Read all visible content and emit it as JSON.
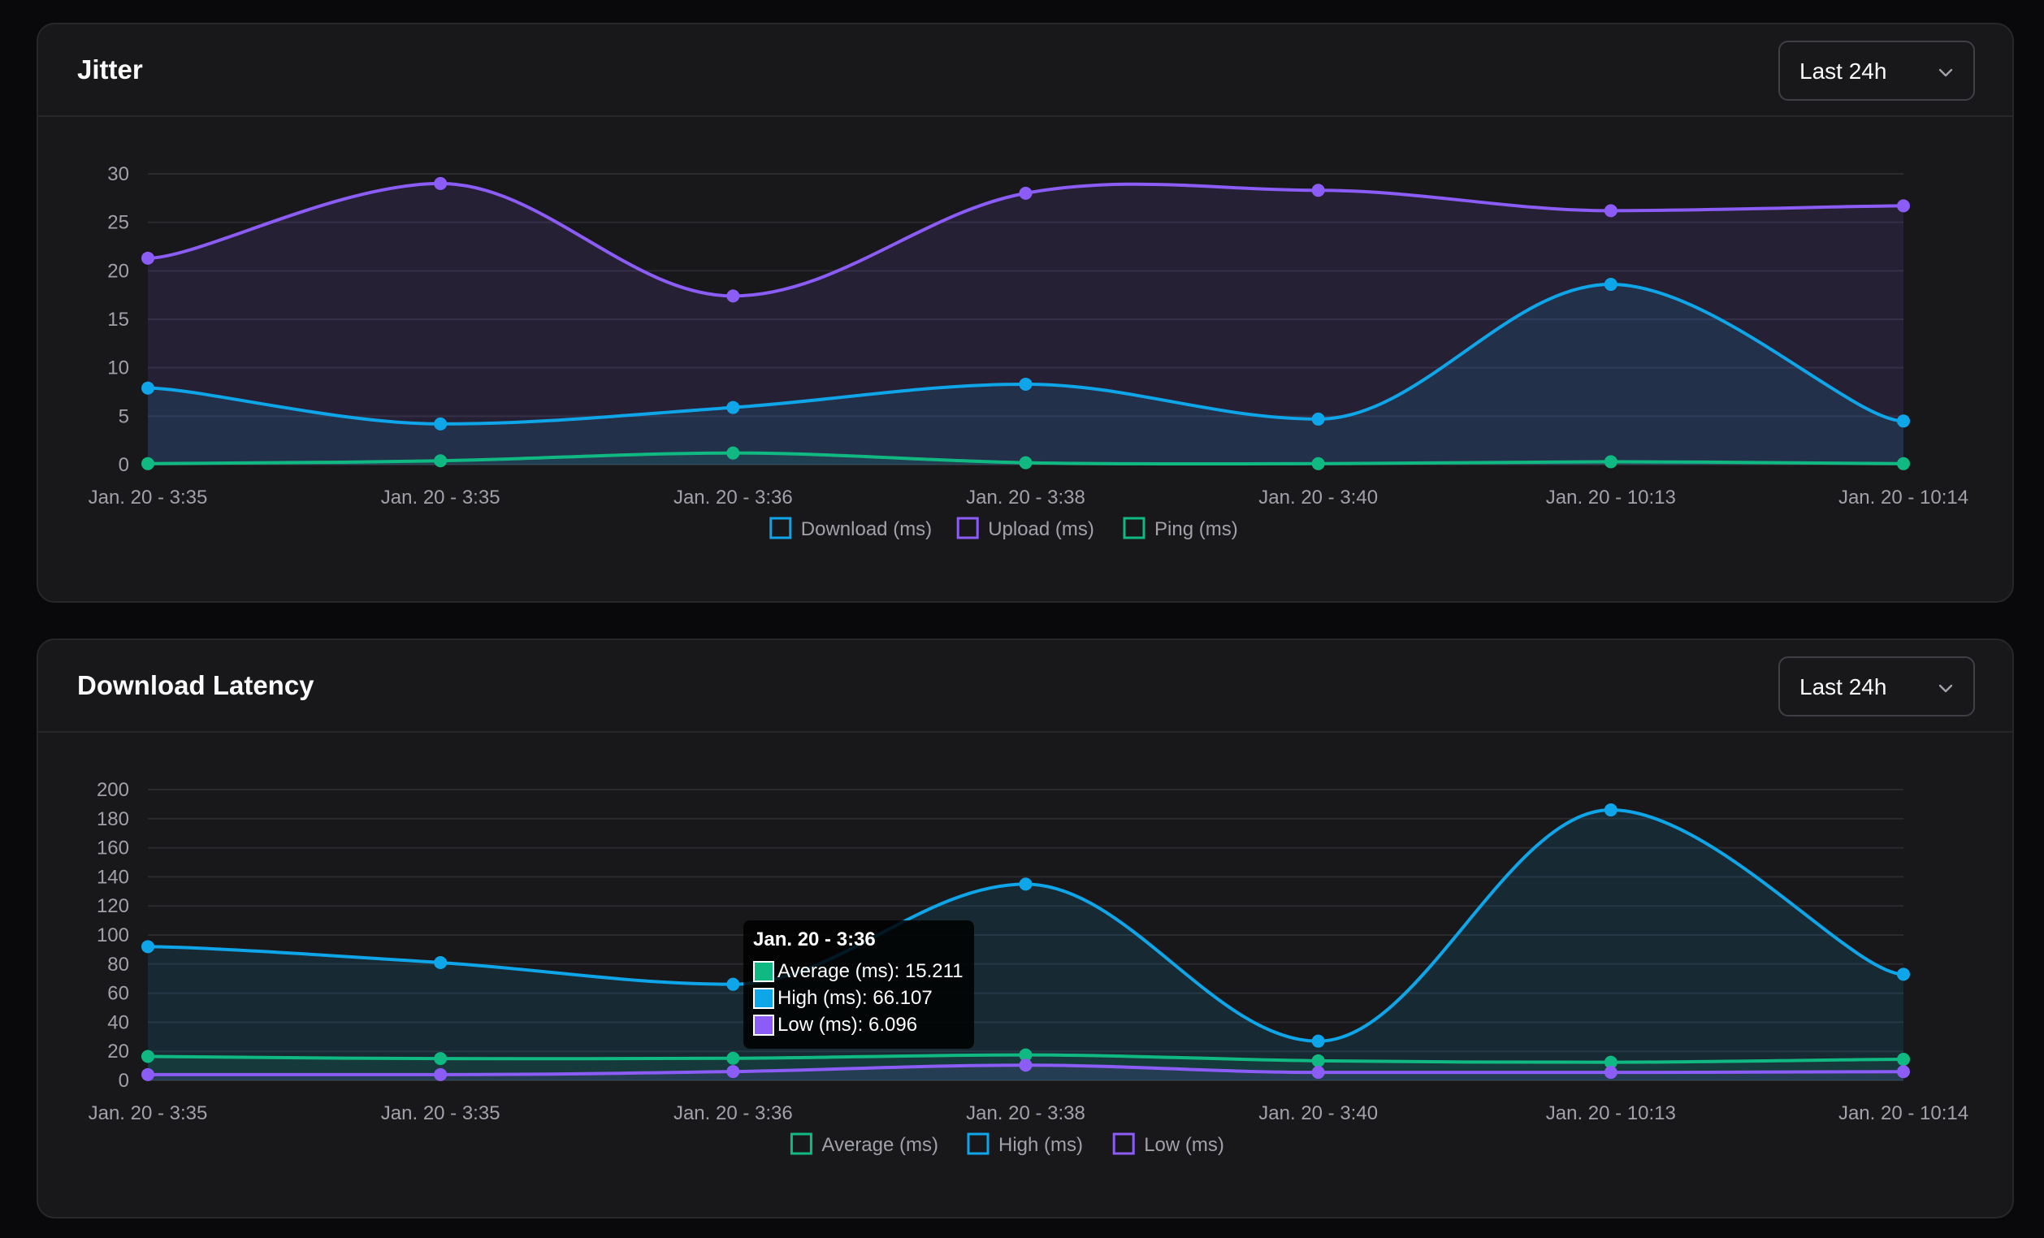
{
  "cards": [
    {
      "title": "Jitter",
      "range": "Last 24h",
      "legend": [
        {
          "label": "Download (ms)"
        },
        {
          "label": "Upload (ms)"
        },
        {
          "label": "Ping (ms)"
        }
      ]
    },
    {
      "title": "Download Latency",
      "range": "Last 24h",
      "legend": [
        {
          "label": "Average (ms)"
        },
        {
          "label": "High (ms)"
        },
        {
          "label": "Low (ms)"
        }
      ],
      "tooltip": {
        "title": "Jan. 20 - 3:36",
        "rows": [
          {
            "label": "Average (ms): 15.211",
            "color": "#10b981"
          },
          {
            "label": "High (ms): 66.107",
            "color": "#0ea5e9"
          },
          {
            "label": "Low (ms): 6.096",
            "color": "#8b5cf6"
          }
        ]
      }
    }
  ],
  "icons": {
    "dropdown": "chevron-down-icon"
  },
  "chart_data": [
    {
      "type": "area",
      "title": "Jitter",
      "categories": [
        "Jan. 20 - 3:35",
        "Jan. 20 - 3:35",
        "Jan. 20 - 3:36",
        "Jan. 20 - 3:38",
        "Jan. 20 - 3:40",
        "Jan. 20 - 10:13",
        "Jan. 20 - 10:14"
      ],
      "ylim": [
        0,
        30
      ],
      "yticks": [
        0,
        5,
        10,
        15,
        20,
        25,
        30
      ],
      "grid": true,
      "legend_position": "bottom",
      "series": [
        {
          "name": "Download (ms)",
          "color": "#0ea5e9",
          "values": [
            7.9,
            4.2,
            5.9,
            8.3,
            4.7,
            18.6,
            4.5
          ]
        },
        {
          "name": "Upload (ms)",
          "color": "#8b5cf6",
          "values": [
            21.3,
            29.0,
            17.4,
            28.0,
            28.3,
            26.2,
            26.7
          ]
        },
        {
          "name": "Ping (ms)",
          "color": "#10b981",
          "values": [
            0.1,
            0.4,
            1.2,
            0.2,
            0.1,
            0.3,
            0.1
          ]
        }
      ]
    },
    {
      "type": "area",
      "title": "Download Latency",
      "categories": [
        "Jan. 20 - 3:35",
        "Jan. 20 - 3:35",
        "Jan. 20 - 3:36",
        "Jan. 20 - 3:38",
        "Jan. 20 - 3:40",
        "Jan. 20 - 10:13",
        "Jan. 20 - 10:14"
      ],
      "ylim": [
        0,
        200
      ],
      "yticks": [
        0,
        20,
        40,
        60,
        80,
        100,
        120,
        140,
        160,
        180,
        200
      ],
      "grid": true,
      "legend_position": "bottom",
      "series": [
        {
          "name": "Average (ms)",
          "color": "#10b981",
          "values": [
            16.5,
            15.0,
            15.211,
            17.5,
            13.5,
            12.5,
            14.5
          ]
        },
        {
          "name": "High (ms)",
          "color": "#0ea5e9",
          "values": [
            92,
            81,
            66.107,
            135,
            27,
            186,
            73
          ]
        },
        {
          "name": "Low (ms)",
          "color": "#8b5cf6",
          "values": [
            4,
            4,
            6.096,
            10.5,
            5.5,
            5.5,
            6
          ]
        }
      ]
    }
  ]
}
